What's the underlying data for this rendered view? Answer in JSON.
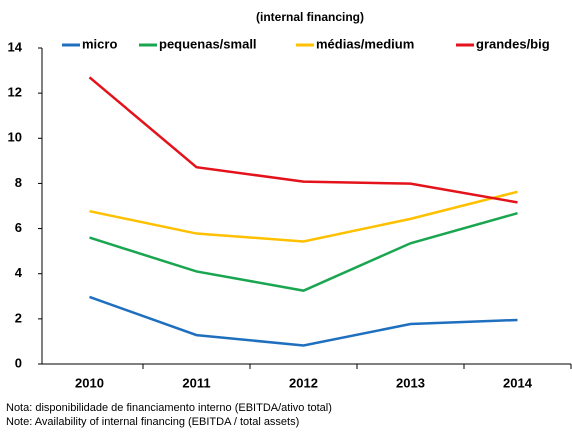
{
  "chart_data": {
    "type": "line",
    "subtitle": "(internal financing)",
    "categories": [
      "2010",
      "2011",
      "2012",
      "2013",
      "2014"
    ],
    "series": [
      {
        "name": "micro",
        "color": "#1f6fbf",
        "values": [
          2.97,
          1.28,
          0.82,
          1.77,
          1.95
        ]
      },
      {
        "name": "pequenas/small",
        "color": "#1aa650",
        "values": [
          5.6,
          4.1,
          3.25,
          5.35,
          6.68
        ]
      },
      {
        "name": "médias/medium",
        "color": "#ffc000",
        "values": [
          6.77,
          5.78,
          5.43,
          6.43,
          7.63
        ]
      },
      {
        "name": "grandes/big",
        "color": "#e3121b",
        "values": [
          12.7,
          8.72,
          8.08,
          7.99,
          7.16
        ]
      }
    ],
    "ylim": [
      0,
      14
    ],
    "yticks": [
      0,
      2,
      4,
      6,
      8,
      10,
      12,
      14
    ],
    "notes": [
      "Nota: disponibilidade de financiamento interno (EBITDA/ativo total)",
      "Note: Availability of internal financing (EBITDA / total assets)"
    ]
  }
}
